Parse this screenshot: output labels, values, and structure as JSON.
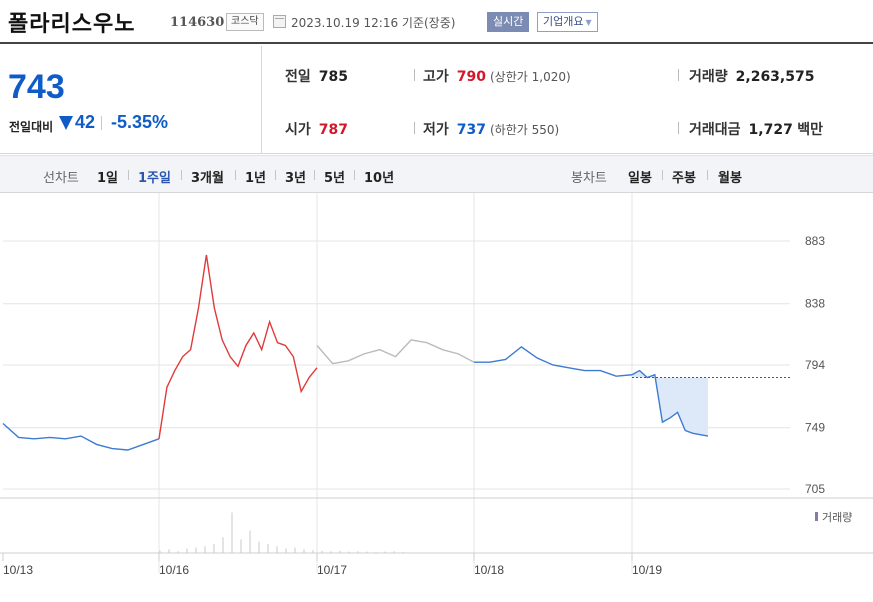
{
  "header": {
    "stock_name": "폴라리스우노",
    "stock_code": "114630",
    "market": "코스닥",
    "timestamp": "2023.10.19 12:16  기준(장중)",
    "realtime_label": "실시간",
    "company_label": "기업개요"
  },
  "summary": {
    "current_price": "743",
    "change_label": "전일대비",
    "change_value": "42",
    "change_pct": "-5.35%",
    "stats": {
      "prev_close_label": "전일",
      "prev_close": "785",
      "high_label": "고가",
      "high": "790",
      "upper_limit": "(상한가 1,020)",
      "volume_label": "거래량",
      "volume": "2,263,575",
      "open_label": "시가",
      "open": "787",
      "low_label": "저가",
      "low": "737",
      "lower_limit": "(하한가 550)",
      "value_label": "거래대금",
      "value": "1,727",
      "value_unit": "백만"
    }
  },
  "toolbar": {
    "line_chart_label": "선차트",
    "periods": [
      "1일",
      "1주일",
      "3개월",
      "1년",
      "3년",
      "5년",
      "10년"
    ],
    "active_period": "1주일",
    "candle_chart_label": "봉차트",
    "candle_periods": [
      "일봉",
      "주봉",
      "월봉"
    ]
  },
  "chart_data": {
    "type": "line",
    "title": "",
    "x_ticks": [
      "10/13",
      "10/16",
      "10/17",
      "10/18",
      "10/19"
    ],
    "y_ticks": [
      705,
      749,
      794,
      838,
      883
    ],
    "ylim": [
      705,
      883
    ],
    "prev_close_reference": 785,
    "volume_legend": "거래량",
    "colors": {
      "up": "#e03a3a",
      "down": "#3d7bd1",
      "neutral": "#bbbbbb",
      "fill": "#dde9f8"
    },
    "series": [
      {
        "day": "10/13",
        "color": "down",
        "x": [
          0,
          0.1,
          0.2,
          0.3,
          0.4,
          0.5,
          0.6,
          0.7,
          0.8,
          0.9,
          1
        ],
        "values": [
          752,
          742,
          741,
          742,
          741,
          743,
          737,
          734,
          733,
          737,
          741
        ]
      },
      {
        "day": "10/16",
        "color": "up",
        "x": [
          0,
          0.05,
          0.1,
          0.15,
          0.2,
          0.25,
          0.3,
          0.35,
          0.4,
          0.45,
          0.5,
          0.55,
          0.6,
          0.65,
          0.7,
          0.75,
          0.8,
          0.85,
          0.9,
          0.95,
          1
        ],
        "values": [
          741,
          778,
          790,
          800,
          805,
          835,
          873,
          835,
          812,
          800,
          793,
          808,
          817,
          805,
          825,
          810,
          808,
          800,
          775,
          785,
          792
        ]
      },
      {
        "day": "10/17",
        "color": "neutral",
        "x": [
          0,
          0.1,
          0.2,
          0.3,
          0.4,
          0.5,
          0.6,
          0.7,
          0.8,
          0.9,
          1
        ],
        "values": [
          808,
          795,
          797,
          802,
          805,
          800,
          812,
          810,
          805,
          802,
          796
        ]
      },
      {
        "day": "10/18",
        "color": "down",
        "x": [
          0,
          0.1,
          0.2,
          0.3,
          0.4,
          0.5,
          0.6,
          0.7,
          0.8,
          0.9,
          1
        ],
        "values": [
          796,
          796,
          798,
          807,
          799,
          794,
          792,
          790,
          790,
          786,
          787
        ]
      },
      {
        "day": "10/19",
        "color": "down",
        "x": [
          0,
          0.1,
          0.2,
          0.3,
          0.4,
          0.5,
          0.6,
          0.7,
          0.8,
          0.9,
          1
        ],
        "values": [
          787,
          790,
          785,
          787,
          753,
          756,
          760,
          747,
          745,
          744,
          743
        ]
      }
    ],
    "volume_series": [
      0.05,
      0.08,
      0.04,
      0.1,
      0.12,
      0.15,
      0.2,
      0.35,
      0.9,
      0.3,
      0.5,
      0.25,
      0.2,
      0.15,
      0.1,
      0.12,
      0.08,
      0.06,
      0.05,
      0.04,
      0.05,
      0.03,
      0.04,
      0.03,
      0.02,
      0.03,
      0.04,
      0.02
    ]
  }
}
